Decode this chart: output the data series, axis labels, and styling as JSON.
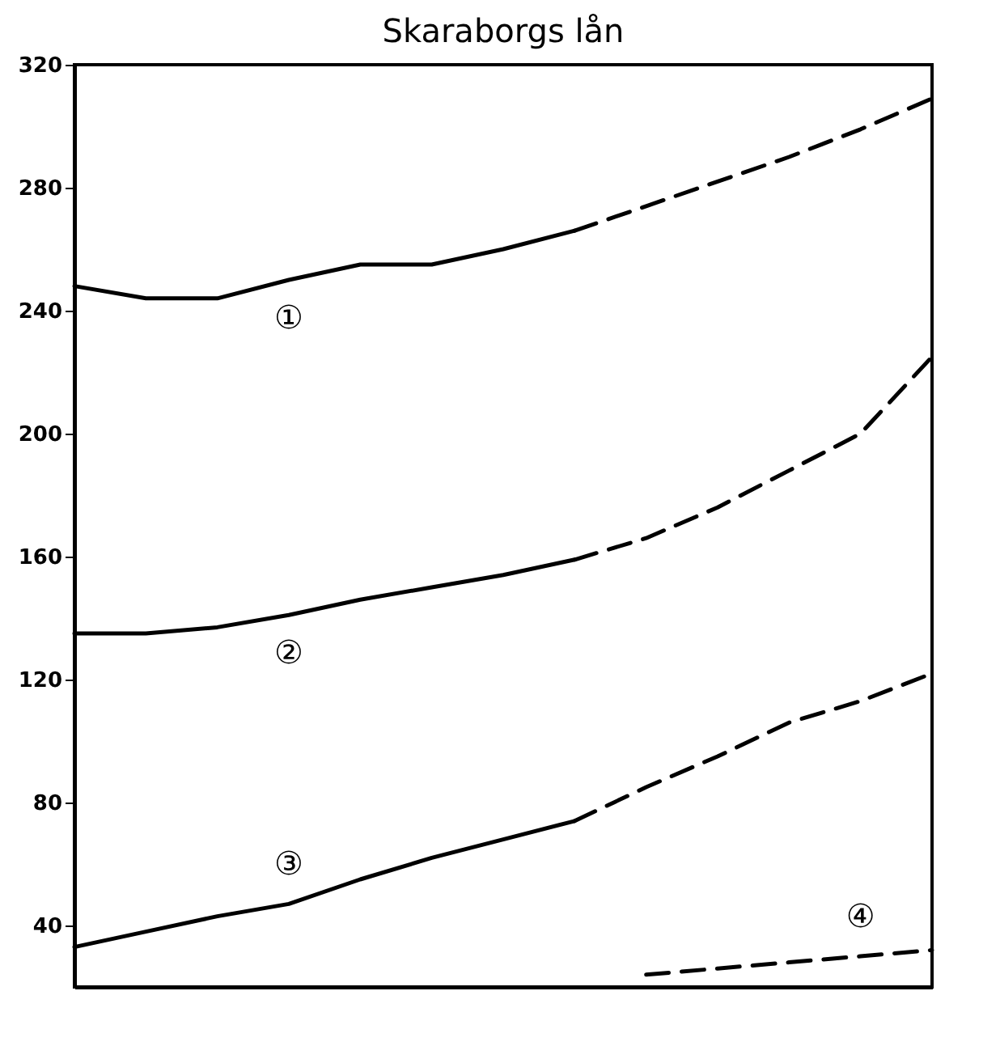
{
  "chart_data": {
    "type": "line",
    "title": "Skaraborgs lån",
    "categories": [
      null,
      null,
      null,
      null,
      null,
      null,
      null,
      null,
      null,
      null,
      null,
      null,
      null
    ],
    "series": [
      {
        "name": "①",
        "color": "#000000",
        "line_style": "solid",
        "values": [
          248,
          244,
          244,
          250,
          255,
          255,
          260,
          266,
          null,
          null,
          null,
          null,
          null
        ]
      },
      {
        "color": "#000000",
        "line_style": "dashed",
        "values": [
          null,
          null,
          null,
          null,
          null,
          null,
          null,
          266,
          274,
          282,
          290,
          299,
          309
        ]
      },
      {
        "name": "②",
        "color": "#000000",
        "line_style": "solid",
        "values": [
          135,
          135,
          137,
          141,
          146,
          150,
          154,
          159,
          null,
          null,
          null,
          null,
          null
        ]
      },
      {
        "color": "#000000",
        "line_style": "dashed",
        "values": [
          null,
          null,
          null,
          null,
          null,
          null,
          null,
          159,
          166,
          176,
          188,
          200,
          225
        ]
      },
      {
        "name": "③",
        "color": "#000000",
        "line_style": "solid",
        "values": [
          33,
          38,
          43,
          47,
          55,
          62,
          68,
          74,
          null,
          null,
          null,
          null,
          null
        ]
      },
      {
        "color": "#000000",
        "line_style": "dashed",
        "values": [
          null,
          null,
          null,
          null,
          null,
          null,
          null,
          74,
          85,
          95,
          106,
          113,
          122
        ]
      },
      {
        "name": "④",
        "color": "#000000",
        "line_style": "dashed",
        "values": [
          null,
          null,
          null,
          null,
          null,
          null,
          null,
          null,
          24,
          26,
          28,
          30,
          32
        ]
      }
    ],
    "ylim": [
      20,
      320
    ],
    "yticks": [
      40,
      80,
      120,
      160,
      200,
      240,
      280,
      320
    ],
    "tick_labels": "y",
    "grid": false,
    "legend": false
  }
}
